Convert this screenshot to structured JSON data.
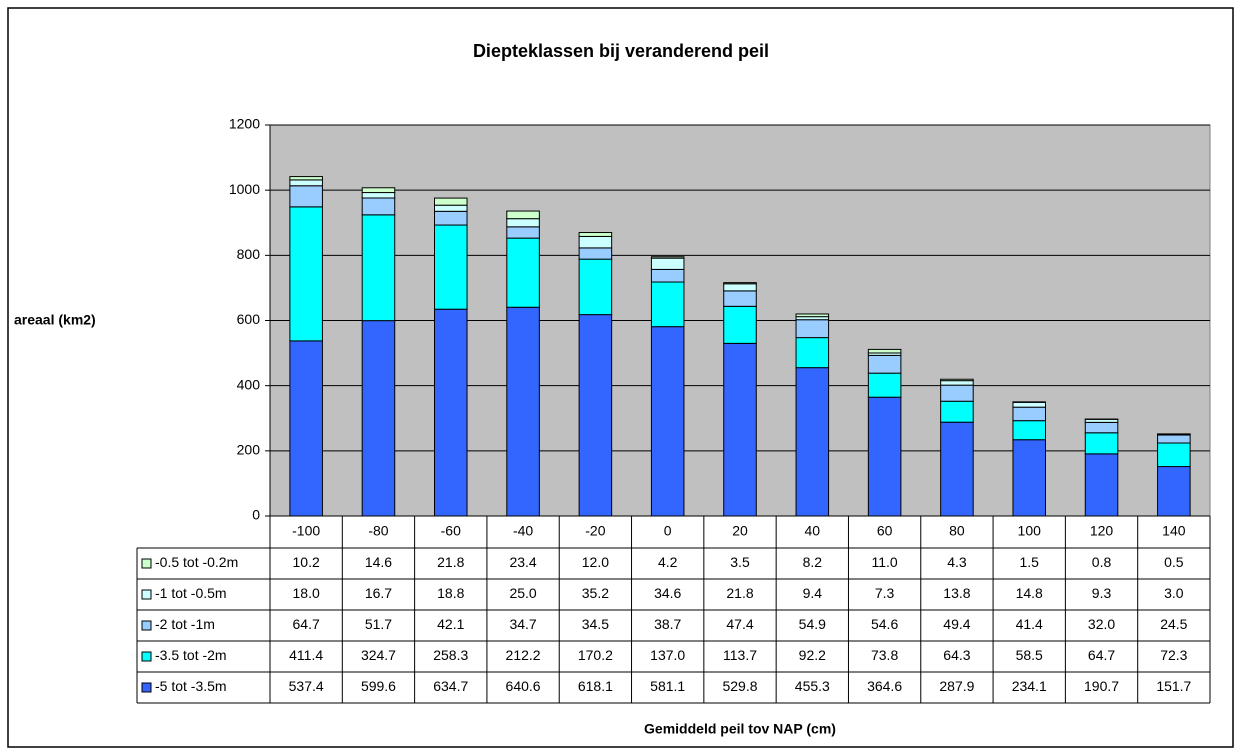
{
  "chart_data": {
    "type": "stacked_bar",
    "title": "Diepteklassen bij veranderend peil",
    "y_label": "areaal (km2)",
    "x_label": "Gemiddeld peil tov NAP (cm)",
    "categories": [
      "-100",
      "-80",
      "-60",
      "-40",
      "-20",
      "0",
      "20",
      "40",
      "60",
      "80",
      "100",
      "120",
      "140"
    ],
    "series": [
      {
        "name": "-5 tot -3.5m",
        "color": "#3366ff",
        "values": [
          537.4,
          599.6,
          634.7,
          640.6,
          618.1,
          581.1,
          529.8,
          455.3,
          364.6,
          287.9,
          234.1,
          190.7,
          151.7
        ],
        "value_labels": [
          "537.4",
          "599.6",
          "634.7",
          "640.6",
          "618.1",
          "581.1",
          "529.8",
          "455.3",
          "364.6",
          "287.9",
          "234.1",
          "190.7",
          "151.7"
        ]
      },
      {
        "name": "-3.5 tot -2m",
        "color": "#00ffff",
        "values": [
          411.4,
          324.7,
          258.3,
          212.2,
          170.2,
          137.0,
          113.7,
          92.2,
          73.8,
          64.3,
          58.5,
          64.7,
          72.3
        ],
        "value_labels": [
          "411.4",
          "324.7",
          "258.3",
          "212.2",
          "170.2",
          "137.0",
          "113.7",
          "92.2",
          "73.8",
          "64.3",
          "58.5",
          "64.7",
          "72.3"
        ]
      },
      {
        "name": "-2 tot -1m",
        "color": "#99ccff",
        "values": [
          64.7,
          51.7,
          42.1,
          34.7,
          34.5,
          38.7,
          47.4,
          54.9,
          54.6,
          49.4,
          41.4,
          32.0,
          24.5
        ],
        "value_labels": [
          "64.7",
          "51.7",
          "42.1",
          "34.7",
          "34.5",
          "38.7",
          "47.4",
          "54.9",
          "54.6",
          "49.4",
          "41.4",
          "32.0",
          "24.5"
        ]
      },
      {
        "name": "-1 tot -0.5m",
        "color": "#ccffff",
        "values": [
          18.0,
          16.7,
          18.8,
          25.0,
          35.2,
          34.6,
          21.8,
          9.4,
          7.3,
          13.8,
          14.8,
          9.3,
          3.0
        ],
        "value_labels": [
          "18.0",
          "16.7",
          "18.8",
          "25.0",
          "35.2",
          "34.6",
          "21.8",
          "9.4",
          "7.3",
          "13.8",
          "14.8",
          "9.3",
          "3.0"
        ]
      },
      {
        "name": "-0.5 tot -0.2m",
        "color": "#ccffcc",
        "values": [
          10.2,
          14.6,
          21.8,
          23.4,
          12.0,
          4.2,
          3.5,
          8.2,
          11.0,
          4.3,
          1.5,
          0.8,
          0.5
        ],
        "value_labels": [
          "10.2",
          "14.6",
          "21.8",
          "23.4",
          "12.0",
          "4.2",
          "3.5",
          "8.2",
          "11.0",
          "4.3",
          "1.5",
          "0.8",
          "0.5"
        ]
      }
    ],
    "ylim": [
      0,
      1200
    ],
    "yticks": [
      0,
      200,
      400,
      600,
      800,
      1000,
      1200
    ],
    "grid": true,
    "plot_background": "#c0c0c0"
  }
}
